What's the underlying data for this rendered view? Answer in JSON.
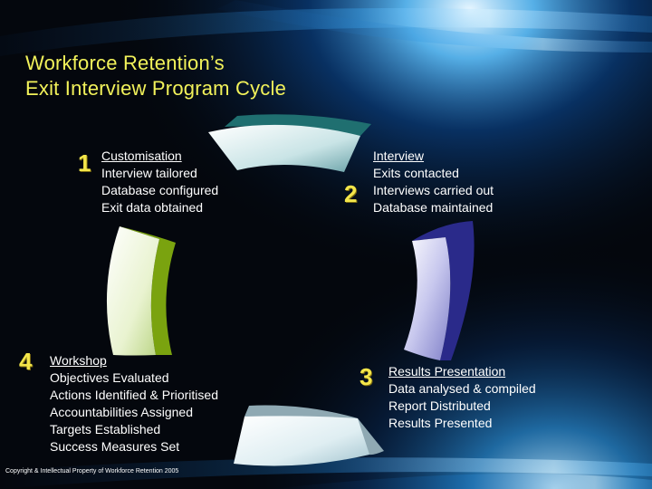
{
  "title": {
    "line1": "Workforce Retention’s",
    "line2": "Exit Interview Program Cycle"
  },
  "steps": [
    {
      "number": "1",
      "heading": "Customisation",
      "items": [
        "Interview tailored",
        "Database configured",
        "Exit data obtained"
      ]
    },
    {
      "number": "2",
      "heading": "Interview",
      "items": [
        "Exits contacted",
        "Interviews carried out",
        "Database maintained"
      ]
    },
    {
      "number": "3",
      "heading": "Results Presentation",
      "items": [
        "Data analysed & compiled",
        "Report Distributed",
        "Results Presented"
      ]
    },
    {
      "number": "4",
      "heading": "Workshop",
      "items": [
        "Objectives Evaluated",
        "Actions Identified & Prioritised",
        "Accountabilities Assigned",
        "Targets Established",
        "Success Measures Set"
      ]
    }
  ],
  "footer": {
    "copyright": "Copyright & Intellectual Property of Workforce Retention 2005"
  },
  "colors": {
    "title": "#f2f25a",
    "number": "#f4e64a",
    "arc_top_edge": "#1f6f70",
    "arc_right_edge": "#2a2a8a",
    "arc_left_edge": "#7aa30f",
    "arc_bottom_edge": "#8fa9b3"
  }
}
